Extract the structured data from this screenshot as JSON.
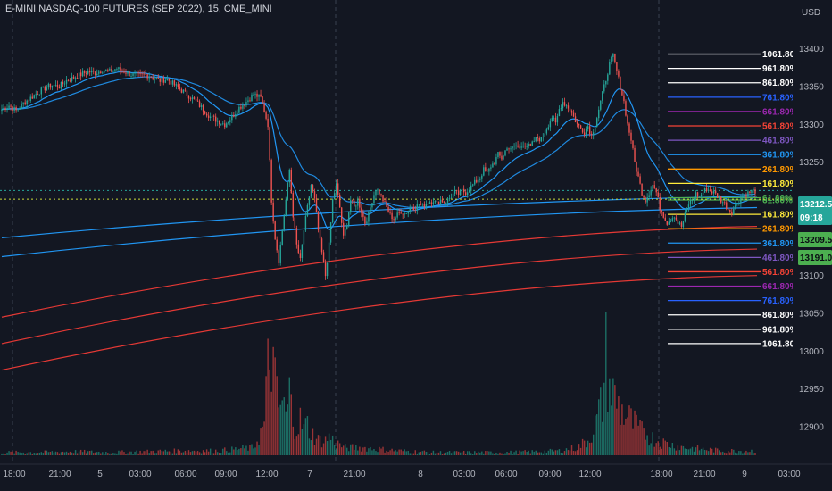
{
  "header": {
    "title": "E-MINI NASDAQ-100 FUTURES (SEP 2022), 15, CME_MINI",
    "currency": "USD"
  },
  "colors": {
    "background": "#131722",
    "up": "#26a69a",
    "down": "#ef5350",
    "vol_up": "#1e7e70",
    "vol_down": "#b23a3a",
    "ma_blue": "#2196f3",
    "ma_red": "#e53935",
    "fib_white": "#ffffff",
    "fib_blue": "#2962ff",
    "fib_purple": "#9c27b0",
    "fib_red": "#f44336",
    "fib_violet": "#7e57c2",
    "fib_teal": "#2196f3",
    "fib_orange": "#ff9800",
    "fib_yellow": "#ffeb3b",
    "fib_green": "#4caf50"
  },
  "chart_data": {
    "type": "candlestick",
    "yaxis": {
      "ticks": [
        12900,
        12950,
        13000,
        13050,
        13100,
        13150,
        13200,
        13250,
        13300,
        13350,
        13400
      ],
      "range": [
        12880,
        13435
      ]
    },
    "xaxis": {
      "labels": [
        "18:00",
        "21:00",
        "5",
        "03:00",
        "06:00",
        "09:00",
        "12:00",
        "7",
        "21:00",
        "8",
        "03:00",
        "06:00",
        "09:00",
        "12:00",
        "18:00",
        "21:00",
        "9",
        "03:00"
      ]
    },
    "session_separators": [
      "5",
      "7",
      "8",
      "9"
    ],
    "price_tags": [
      {
        "value": "13212.50",
        "sub": "09:18",
        "color": "#26a69a"
      },
      {
        "value": "13209.50",
        "color": "#4caf50"
      },
      {
        "value": "13191.00",
        "color": "#4caf50"
      }
    ],
    "fib_levels_upper": [
      {
        "label": "1061.80%",
        "color": "#ffffff",
        "price": 13393
      },
      {
        "label": "961.80%",
        "color": "#ffffff",
        "price": 13374
      },
      {
        "label": "861.80%",
        "color": "#ffffff",
        "price": 13355
      },
      {
        "label": "761.80%",
        "color": "#2962ff",
        "price": 13336
      },
      {
        "label": "661.80%",
        "color": "#9c27b0",
        "price": 13317
      },
      {
        "label": "561.80%",
        "color": "#f44336",
        "price": 13298
      },
      {
        "label": "461.80%",
        "color": "#7e57c2",
        "price": 13279
      },
      {
        "label": "361.80%",
        "color": "#2196f3",
        "price": 13260
      },
      {
        "label": "261.80%",
        "color": "#ff9800",
        "price": 13241
      },
      {
        "label": "161.80%",
        "color": "#ffeb3b",
        "price": 13222
      },
      {
        "label": "61.80%",
        "color": "#4caf50",
        "price": 13203
      }
    ],
    "fib_levels_lower": [
      {
        "label": "61.80%",
        "color": "#4caf50",
        "price": 13200
      },
      {
        "label": "161.80%",
        "color": "#ffeb3b",
        "price": 13181
      },
      {
        "label": "261.80%",
        "color": "#ff9800",
        "price": 13162
      },
      {
        "label": "361.80%",
        "color": "#2196f3",
        "price": 13143
      },
      {
        "label": "461.80%",
        "color": "#7e57c2",
        "price": 13124
      },
      {
        "label": "561.80%",
        "color": "#f44336",
        "price": 13105
      },
      {
        "label": "661.80%",
        "color": "#9c27b0",
        "price": 13086
      },
      {
        "label": "761.80%",
        "color": "#2962ff",
        "price": 13067
      },
      {
        "label": "861.80%",
        "color": "#ffffff",
        "price": 13048
      },
      {
        "label": "961.80%",
        "color": "#ffffff",
        "price": 13029
      },
      {
        "label": "1061.80%",
        "color": "#ffffff",
        "price": 13010
      }
    ],
    "close_path": [
      [
        0,
        13320
      ],
      [
        4,
        13325
      ],
      [
        8,
        13318
      ],
      [
        12,
        13328
      ],
      [
        16,
        13335
      ],
      [
        20,
        13342
      ],
      [
        24,
        13348
      ],
      [
        28,
        13352
      ],
      [
        32,
        13350
      ],
      [
        36,
        13358
      ],
      [
        40,
        13362
      ],
      [
        44,
        13366
      ],
      [
        48,
        13370
      ],
      [
        52,
        13368
      ],
      [
        56,
        13372
      ],
      [
        60,
        13370
      ],
      [
        64,
        13374
      ],
      [
        68,
        13370
      ],
      [
        72,
        13366
      ],
      [
        76,
        13364
      ],
      [
        80,
        13366
      ],
      [
        84,
        13362
      ],
      [
        88,
        13358
      ],
      [
        92,
        13360
      ],
      [
        96,
        13352
      ],
      [
        100,
        13345
      ],
      [
        104,
        13338
      ],
      [
        108,
        13330
      ],
      [
        112,
        13320
      ],
      [
        116,
        13310
      ],
      [
        120,
        13305
      ],
      [
        124,
        13300
      ],
      [
        128,
        13310
      ],
      [
        132,
        13322
      ],
      [
        136,
        13330
      ],
      [
        140,
        13340
      ],
      [
        144,
        13335
      ],
      [
        148,
        13300
      ],
      [
        150,
        13200
      ],
      [
        152,
        13150
      ],
      [
        154,
        13120
      ],
      [
        156,
        13160
      ],
      [
        158,
        13200
      ],
      [
        160,
        13240
      ],
      [
        162,
        13180
      ],
      [
        164,
        13140
      ],
      [
        166,
        13120
      ],
      [
        168,
        13160
      ],
      [
        170,
        13190
      ],
      [
        172,
        13220
      ],
      [
        174,
        13200
      ],
      [
        176,
        13160
      ],
      [
        178,
        13130
      ],
      [
        180,
        13100
      ],
      [
        182,
        13140
      ],
      [
        184,
        13200
      ],
      [
        186,
        13220
      ],
      [
        188,
        13190
      ],
      [
        190,
        13150
      ],
      [
        192,
        13170
      ],
      [
        194,
        13200
      ],
      [
        196,
        13190
      ],
      [
        198,
        13200
      ],
      [
        200,
        13185
      ],
      [
        202,
        13170
      ],
      [
        204,
        13180
      ],
      [
        206,
        13200
      ],
      [
        208,
        13215
      ],
      [
        210,
        13210
      ],
      [
        212,
        13200
      ],
      [
        214,
        13190
      ],
      [
        216,
        13180
      ],
      [
        218,
        13175
      ],
      [
        220,
        13180
      ],
      [
        222,
        13185
      ],
      [
        224,
        13182
      ],
      [
        226,
        13186
      ],
      [
        228,
        13192
      ],
      [
        230,
        13190
      ],
      [
        232,
        13195
      ],
      [
        234,
        13192
      ],
      [
        236,
        13195
      ],
      [
        238,
        13198
      ],
      [
        240,
        13200
      ],
      [
        242,
        13195
      ],
      [
        244,
        13200
      ],
      [
        246,
        13198
      ],
      [
        248,
        13200
      ],
      [
        250,
        13205
      ],
      [
        252,
        13210
      ],
      [
        254,
        13208
      ],
      [
        256,
        13212
      ],
      [
        258,
        13210
      ],
      [
        260,
        13215
      ],
      [
        262,
        13220
      ],
      [
        264,
        13225
      ],
      [
        266,
        13230
      ],
      [
        268,
        13240
      ],
      [
        270,
        13235
      ],
      [
        272,
        13245
      ],
      [
        274,
        13250
      ],
      [
        276,
        13260
      ],
      [
        278,
        13255
      ],
      [
        280,
        13265
      ],
      [
        282,
        13270
      ],
      [
        284,
        13268
      ],
      [
        286,
        13272
      ],
      [
        288,
        13268
      ],
      [
        290,
        13275
      ],
      [
        292,
        13272
      ],
      [
        294,
        13270
      ],
      [
        296,
        13278
      ],
      [
        298,
        13282
      ],
      [
        300,
        13280
      ],
      [
        302,
        13290
      ],
      [
        304,
        13300
      ],
      [
        306,
        13310
      ],
      [
        308,
        13300
      ],
      [
        310,
        13320
      ],
      [
        312,
        13330
      ],
      [
        314,
        13325
      ],
      [
        316,
        13320
      ],
      [
        318,
        13310
      ],
      [
        320,
        13300
      ],
      [
        322,
        13295
      ],
      [
        324,
        13290
      ],
      [
        326,
        13298
      ],
      [
        328,
        13285
      ],
      [
        330,
        13300
      ],
      [
        332,
        13320
      ],
      [
        334,
        13340
      ],
      [
        336,
        13360
      ],
      [
        338,
        13380
      ],
      [
        340,
        13390
      ],
      [
        342,
        13370
      ],
      [
        344,
        13350
      ],
      [
        346,
        13330
      ],
      [
        348,
        13300
      ],
      [
        350,
        13280
      ],
      [
        352,
        13250
      ],
      [
        354,
        13230
      ],
      [
        356,
        13210
      ],
      [
        358,
        13200
      ],
      [
        360,
        13210
      ],
      [
        362,
        13220
      ],
      [
        364,
        13210
      ],
      [
        366,
        13190
      ],
      [
        368,
        13180
      ],
      [
        370,
        13170
      ],
      [
        372,
        13175
      ],
      [
        374,
        13180
      ],
      [
        376,
        13170
      ],
      [
        378,
        13165
      ],
      [
        380,
        13180
      ],
      [
        382,
        13195
      ],
      [
        384,
        13200
      ],
      [
        386,
        13208
      ],
      [
        388,
        13205
      ],
      [
        390,
        13210
      ],
      [
        392,
        13215
      ],
      [
        394,
        13212
      ],
      [
        396,
        13210
      ],
      [
        398,
        13205
      ],
      [
        400,
        13200
      ],
      [
        402,
        13195
      ],
      [
        404,
        13188
      ],
      [
        406,
        13185
      ],
      [
        408,
        13192
      ],
      [
        410,
        13200
      ],
      [
        412,
        13205
      ],
      [
        414,
        13208
      ],
      [
        416,
        13210
      ],
      [
        418,
        13212
      ]
    ],
    "volume_profile": [
      [
        0,
        4
      ],
      [
        20,
        4
      ],
      [
        40,
        5
      ],
      [
        60,
        4
      ],
      [
        80,
        5
      ],
      [
        100,
        6
      ],
      [
        120,
        6
      ],
      [
        140,
        10
      ],
      [
        146,
        40
      ],
      [
        148,
        110
      ],
      [
        150,
        140
      ],
      [
        152,
        90
      ],
      [
        154,
        60
      ],
      [
        156,
        70
      ],
      [
        158,
        50
      ],
      [
        160,
        80
      ],
      [
        162,
        50
      ],
      [
        164,
        40
      ],
      [
        166,
        45
      ],
      [
        168,
        35
      ],
      [
        170,
        40
      ],
      [
        172,
        30
      ],
      [
        174,
        25
      ],
      [
        176,
        20
      ],
      [
        178,
        20
      ],
      [
        180,
        20
      ],
      [
        182,
        25
      ],
      [
        184,
        20
      ],
      [
        186,
        15
      ],
      [
        188,
        15
      ],
      [
        190,
        10
      ],
      [
        200,
        10
      ],
      [
        220,
        6
      ],
      [
        240,
        4
      ],
      [
        260,
        4
      ],
      [
        280,
        4
      ],
      [
        300,
        5
      ],
      [
        310,
        6
      ],
      [
        320,
        10
      ],
      [
        326,
        20
      ],
      [
        330,
        40
      ],
      [
        334,
        70
      ],
      [
        336,
        130
      ],
      [
        338,
        90
      ],
      [
        340,
        80
      ],
      [
        342,
        70
      ],
      [
        344,
        60
      ],
      [
        346,
        55
      ],
      [
        348,
        50
      ],
      [
        350,
        45
      ],
      [
        352,
        40
      ],
      [
        354,
        35
      ],
      [
        356,
        30
      ],
      [
        358,
        30
      ],
      [
        360,
        25
      ],
      [
        364,
        20
      ],
      [
        370,
        15
      ],
      [
        380,
        10
      ],
      [
        390,
        8
      ],
      [
        400,
        6
      ],
      [
        418,
        6
      ]
    ]
  }
}
